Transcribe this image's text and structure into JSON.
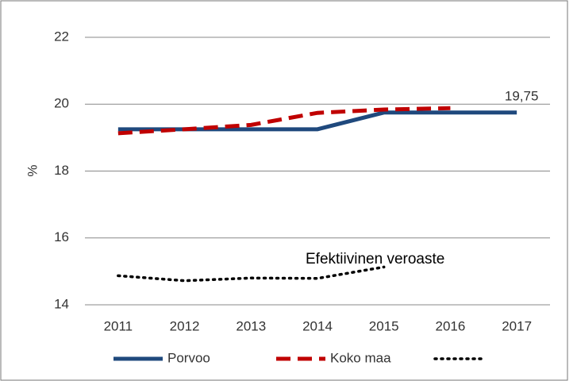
{
  "chart_data": {
    "type": "line",
    "y_label": "%",
    "categories": [
      "2011",
      "2012",
      "2013",
      "2014",
      "2015",
      "2016",
      "2017"
    ],
    "series": [
      {
        "name": "Porvoo",
        "color": "#1f497d",
        "dash": "solid",
        "values": [
          19.25,
          19.25,
          19.25,
          19.25,
          19.75,
          19.75,
          19.75
        ],
        "value_labels": [
          null,
          null,
          null,
          null,
          null,
          null,
          "19,75"
        ]
      },
      {
        "name": "Koko maa",
        "color": "#c00000",
        "dash": "dashed",
        "values": [
          19.13,
          19.25,
          19.38,
          19.74,
          19.84,
          19.88,
          null
        ]
      },
      {
        "color": "#000000",
        "dash": "dotted",
        "values": [
          14.87,
          14.72,
          14.8,
          14.79,
          15.13,
          null,
          null
        ]
      }
    ],
    "annotation": "Efektiivinen veroaste",
    "ylim": [
      14,
      22
    ],
    "yticks": [
      14,
      16,
      18,
      20,
      22
    ],
    "grid": true,
    "legend": "bottom"
  }
}
